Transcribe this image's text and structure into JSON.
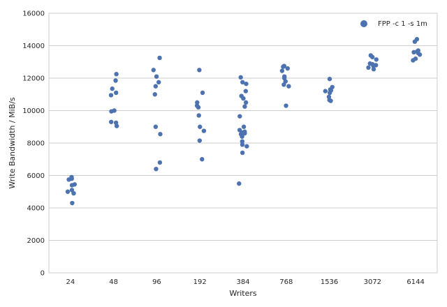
{
  "chart_data": {
    "type": "scatter",
    "xlabel": "Writers",
    "ylabel": "Write Bandwidth / MiB/s",
    "ylim": [
      0,
      16000
    ],
    "yticks": [
      0,
      2000,
      4000,
      6000,
      8000,
      10000,
      12000,
      14000,
      16000
    ],
    "categories": [
      "24",
      "48",
      "96",
      "192",
      "384",
      "768",
      "1536",
      "3072",
      "6144"
    ],
    "grid": true,
    "legend": {
      "placement": "top-right",
      "entries": [
        "FPP -c 1 -s 1m"
      ]
    },
    "colors": {
      "marker": "#4c72b0",
      "grid": "#cccccc",
      "axis": "#cccccc",
      "background": "#ffffff"
    },
    "series": [
      {
        "name": "FPP -c 1 -s 1m",
        "points": [
          {
            "x": "24",
            "y": 5800
          },
          {
            "x": "24",
            "y": 5750
          },
          {
            "x": "24",
            "y": 5900
          },
          {
            "x": "24",
            "y": 5450
          },
          {
            "x": "24",
            "y": 5400
          },
          {
            "x": "24",
            "y": 5100
          },
          {
            "x": "24",
            "y": 5000
          },
          {
            "x": "24",
            "y": 4900
          },
          {
            "x": "24",
            "y": 4300
          },
          {
            "x": "48",
            "y": 12250
          },
          {
            "x": "48",
            "y": 11850
          },
          {
            "x": "48",
            "y": 11350
          },
          {
            "x": "48",
            "y": 11100
          },
          {
            "x": "48",
            "y": 10950
          },
          {
            "x": "48",
            "y": 10000
          },
          {
            "x": "48",
            "y": 9950
          },
          {
            "x": "48",
            "y": 9300
          },
          {
            "x": "48",
            "y": 9250
          },
          {
            "x": "48",
            "y": 9050
          },
          {
            "x": "96",
            "y": 13250
          },
          {
            "x": "96",
            "y": 12500
          },
          {
            "x": "96",
            "y": 12100
          },
          {
            "x": "96",
            "y": 11750
          },
          {
            "x": "96",
            "y": 11500
          },
          {
            "x": "96",
            "y": 11000
          },
          {
            "x": "96",
            "y": 9000
          },
          {
            "x": "96",
            "y": 8550
          },
          {
            "x": "96",
            "y": 6800
          },
          {
            "x": "96",
            "y": 6400
          },
          {
            "x": "192",
            "y": 12500
          },
          {
            "x": "192",
            "y": 11100
          },
          {
            "x": "192",
            "y": 10500
          },
          {
            "x": "192",
            "y": 10300
          },
          {
            "x": "192",
            "y": 10200
          },
          {
            "x": "192",
            "y": 9700
          },
          {
            "x": "192",
            "y": 9000
          },
          {
            "x": "192",
            "y": 8750
          },
          {
            "x": "192",
            "y": 8150
          },
          {
            "x": "192",
            "y": 7000
          },
          {
            "x": "384",
            "y": 12050
          },
          {
            "x": "384",
            "y": 11750
          },
          {
            "x": "384",
            "y": 11650
          },
          {
            "x": "384",
            "y": 11200
          },
          {
            "x": "384",
            "y": 10900
          },
          {
            "x": "384",
            "y": 10750
          },
          {
            "x": "384",
            "y": 10500
          },
          {
            "x": "384",
            "y": 10250
          },
          {
            "x": "384",
            "y": 9650
          },
          {
            "x": "384",
            "y": 9000
          },
          {
            "x": "384",
            "y": 8800
          },
          {
            "x": "384",
            "y": 8700
          },
          {
            "x": "384",
            "y": 8650
          },
          {
            "x": "384",
            "y": 8600
          },
          {
            "x": "384",
            "y": 8550
          },
          {
            "x": "384",
            "y": 8400
          },
          {
            "x": "384",
            "y": 8100
          },
          {
            "x": "384",
            "y": 7900
          },
          {
            "x": "384",
            "y": 7800
          },
          {
            "x": "384",
            "y": 7400
          },
          {
            "x": "384",
            "y": 5500
          },
          {
            "x": "768",
            "y": 12750
          },
          {
            "x": "768",
            "y": 12700
          },
          {
            "x": "768",
            "y": 12600
          },
          {
            "x": "768",
            "y": 12450
          },
          {
            "x": "768",
            "y": 12100
          },
          {
            "x": "768",
            "y": 12000
          },
          {
            "x": "768",
            "y": 11800
          },
          {
            "x": "768",
            "y": 11600
          },
          {
            "x": "768",
            "y": 11500
          },
          {
            "x": "768",
            "y": 10300
          },
          {
            "x": "1536",
            "y": 11950
          },
          {
            "x": "1536",
            "y": 11450
          },
          {
            "x": "1536",
            "y": 11300
          },
          {
            "x": "1536",
            "y": 11250
          },
          {
            "x": "1536",
            "y": 11200
          },
          {
            "x": "1536",
            "y": 11100
          },
          {
            "x": "1536",
            "y": 10850
          },
          {
            "x": "1536",
            "y": 10650
          },
          {
            "x": "1536",
            "y": 10600
          },
          {
            "x": "3072",
            "y": 13400
          },
          {
            "x": "3072",
            "y": 13300
          },
          {
            "x": "3072",
            "y": 13150
          },
          {
            "x": "3072",
            "y": 12900
          },
          {
            "x": "3072",
            "y": 12850
          },
          {
            "x": "3072",
            "y": 12800
          },
          {
            "x": "3072",
            "y": 12750
          },
          {
            "x": "3072",
            "y": 12650
          },
          {
            "x": "3072",
            "y": 12550
          },
          {
            "x": "6144",
            "y": 14400
          },
          {
            "x": "6144",
            "y": 14250
          },
          {
            "x": "6144",
            "y": 13700
          },
          {
            "x": "6144",
            "y": 13650
          },
          {
            "x": "6144",
            "y": 13600
          },
          {
            "x": "6144",
            "y": 13550
          },
          {
            "x": "6144",
            "y": 13450
          },
          {
            "x": "6144",
            "y": 13200
          },
          {
            "x": "6144",
            "y": 13100
          }
        ]
      }
    ]
  }
}
